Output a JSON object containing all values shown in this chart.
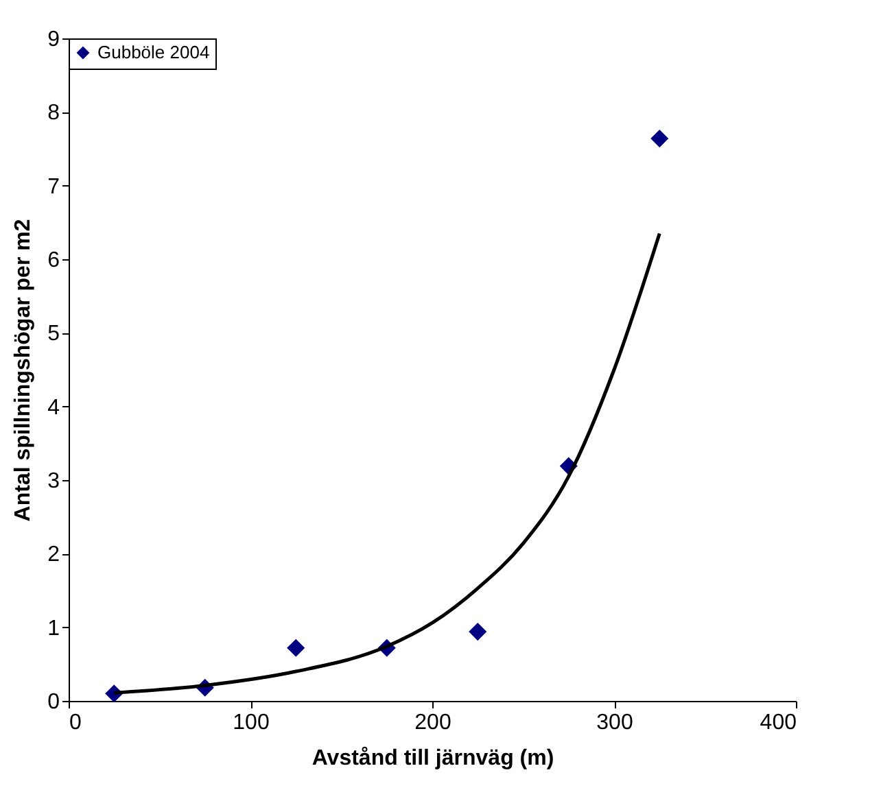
{
  "chart_data": {
    "type": "scatter",
    "xlabel": "Avstånd till järnväg (m)",
    "ylabel": "Antal spillningshögar per m2",
    "xlim": [
      0,
      400
    ],
    "xticks": [
      0,
      100,
      200,
      300,
      400
    ],
    "ylim": [
      0,
      9
    ],
    "yticks": [
      0,
      1,
      2,
      3,
      4,
      5,
      6,
      7,
      8,
      9
    ],
    "marker": "diamond",
    "legend": "top left",
    "grid": false,
    "series": [
      {
        "name": "Gubböle 2004",
        "color": "#000080",
        "x": [
          25,
          75,
          125,
          175,
          225,
          275,
          325
        ],
        "values": [
          0.1,
          0.18,
          0.72,
          0.72,
          0.94,
          3.19,
          7.64
        ]
      },
      {
        "type": "line",
        "color": "#000000",
        "marker": "none",
        "x": [
          25,
          75,
          125,
          175,
          200,
          225,
          250,
          275,
          300,
          325
        ],
        "values": [
          0.11,
          0.21,
          0.4,
          0.74,
          1.06,
          1.53,
          2.14,
          3.05,
          4.5,
          6.35
        ]
      }
    ]
  }
}
